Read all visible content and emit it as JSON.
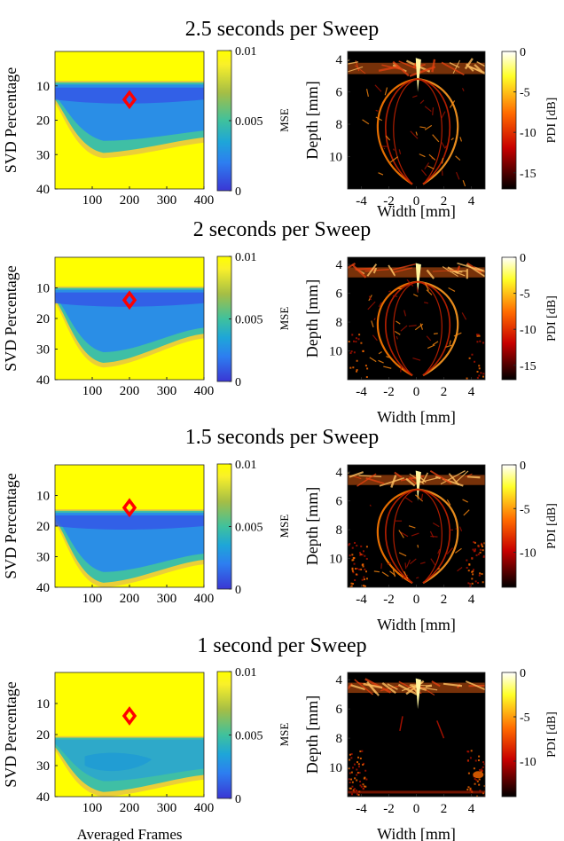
{
  "chart_data": [
    {
      "type": "heatmap",
      "title": "2.5 seconds per Sweep",
      "xlabel": "",
      "ylabel": "SVD Percentage",
      "xticks": [
        100,
        200,
        300,
        400
      ],
      "yticks": [
        10,
        20,
        30,
        40
      ],
      "xlim": [
        0,
        400
      ],
      "ylim": [
        40,
        0
      ],
      "marker": {
        "x": 200,
        "y": 14
      },
      "colorbar": {
        "label": "MSE",
        "ticks": [
          "0.01",
          "0.005",
          "0"
        ],
        "range": [
          0,
          0.01
        ]
      },
      "low_region": {
        "top": 9,
        "left_bottom": 14,
        "mid_bottom": 29,
        "right_bottom": 24
      }
    },
    {
      "type": "heatmap",
      "title": "",
      "xlabel": "Width [mm]",
      "ylabel": "Depth [mm]",
      "xticks": [
        -4,
        -2,
        0,
        2,
        4
      ],
      "yticks": [
        4,
        6,
        8,
        10
      ],
      "xlim": [
        -5,
        5
      ],
      "ylim": [
        12,
        3.5
      ],
      "colorbar": {
        "label": "PDI [dB]",
        "ticks": [
          "0",
          "-5",
          "-10",
          "-15"
        ],
        "range": [
          -17,
          0
        ]
      }
    },
    {
      "type": "heatmap",
      "title": "2 seconds per Sweep",
      "xlabel": "",
      "ylabel": "SVD Percentage",
      "xticks": [
        100,
        200,
        300,
        400
      ],
      "yticks": [
        10,
        20,
        30,
        40
      ],
      "xlim": [
        0,
        400
      ],
      "ylim": [
        40,
        0
      ],
      "marker": {
        "x": 200,
        "y": 14
      },
      "colorbar": {
        "label": "MSE",
        "ticks": [
          "0.01",
          "0.005",
          "0"
        ],
        "range": [
          0,
          0.01
        ]
      },
      "low_region": {
        "top": 10,
        "left_bottom": 14,
        "mid_bottom": 34,
        "right_bottom": 24
      }
    },
    {
      "type": "heatmap",
      "title": "",
      "xlabel": "Width [mm]",
      "ylabel": "Depth [mm]",
      "xticks": [
        -4,
        -2,
        0,
        2,
        4
      ],
      "yticks": [
        4,
        6,
        8,
        10
      ],
      "xlim": [
        -5,
        5
      ],
      "ylim": [
        12,
        3.5
      ],
      "colorbar": {
        "label": "PDI [dB]",
        "ticks": [
          "0",
          "-5",
          "-10",
          "-15"
        ],
        "range": [
          -17,
          0
        ]
      }
    },
    {
      "type": "heatmap",
      "title": "1.5 seconds per Sweep",
      "xlabel": "",
      "ylabel": "SVD Percentage",
      "xticks": [
        100,
        200,
        300,
        400
      ],
      "yticks": [
        10,
        20,
        30,
        40
      ],
      "xlim": [
        0,
        400
      ],
      "ylim": [
        40,
        0
      ],
      "marker": {
        "x": 200,
        "y": 14
      },
      "colorbar": {
        "label": "MSE",
        "ticks": [
          "0.01",
          "0.005",
          "0"
        ],
        "range": [
          0,
          0.01
        ]
      },
      "low_region": {
        "top": 15,
        "left_bottom": 18,
        "mid_bottom": 38,
        "right_bottom": 30
      }
    },
    {
      "type": "heatmap",
      "title": "",
      "xlabel": "Width [mm]",
      "ylabel": "Depth [mm]",
      "xticks": [
        -4,
        -2,
        0,
        2,
        4
      ],
      "yticks": [
        4,
        6,
        8,
        10
      ],
      "xlim": [
        -5,
        5
      ],
      "ylim": [
        12,
        3.5
      ],
      "colorbar": {
        "label": "PDI [dB]",
        "ticks": [
          "0",
          "-5",
          "-10"
        ],
        "range": [
          -14,
          0
        ]
      }
    },
    {
      "type": "heatmap",
      "title": "1 second per Sweep",
      "xlabel": "Averaged Frames",
      "ylabel": "SVD Percentage",
      "xticks": [
        100,
        200,
        300,
        400
      ],
      "yticks": [
        10,
        20,
        30,
        40
      ],
      "xlim": [
        0,
        400
      ],
      "ylim": [
        40,
        0
      ],
      "marker": {
        "x": 200,
        "y": 14
      },
      "colorbar": {
        "label": "MSE",
        "ticks": [
          "0.01",
          "0.005",
          "0"
        ],
        "range": [
          0,
          0.01
        ]
      },
      "low_region": {
        "top": 21,
        "left_bottom": 24,
        "mid_bottom": 38,
        "right_bottom": 32
      }
    },
    {
      "type": "heatmap",
      "title": "",
      "xlabel": "Width [mm]",
      "ylabel": "Depth [mm]",
      "xticks": [
        -4,
        -2,
        0,
        2,
        4
      ],
      "yticks": [
        4,
        6,
        8,
        10
      ],
      "xlim": [
        -5,
        5
      ],
      "ylim": [
        12,
        3.5
      ],
      "colorbar": {
        "label": "PDI [dB]",
        "ticks": [
          "0",
          "-5",
          "-10"
        ],
        "range": [
          -14,
          0
        ]
      }
    }
  ]
}
